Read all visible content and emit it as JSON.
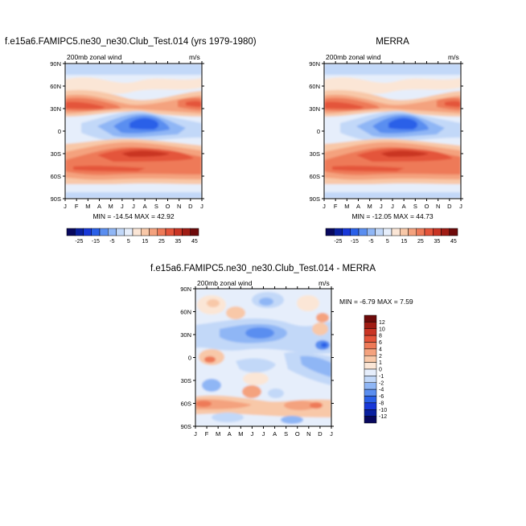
{
  "chart_data": [
    {
      "type": "heatmap",
      "title": "f.e15a6.FAMIPC5.ne30_ne30.Club_Test.014 (yrs 1979-1980)",
      "subtitle_left": "200mb zonal wind",
      "units": "m/s",
      "x_ticks": [
        "J",
        "F",
        "M",
        "A",
        "M",
        "J",
        "J",
        "A",
        "S",
        "O",
        "N",
        "D",
        "J"
      ],
      "y_ticks": [
        "90N",
        "60N",
        "30N",
        "0",
        "30S",
        "60S",
        "90S"
      ],
      "minmax_text": "MIN = -14.54 MAX =  42.92",
      "min": -14.54,
      "max": 42.92,
      "colorbar_labels": [
        "-25",
        "-15",
        "-5",
        "5",
        "15",
        "25",
        "35",
        "45"
      ]
    },
    {
      "type": "heatmap",
      "title": "MERRA",
      "subtitle_left": "200mb zonal wind",
      "units": "m/s",
      "x_ticks": [
        "J",
        "F",
        "M",
        "A",
        "M",
        "J",
        "J",
        "A",
        "S",
        "O",
        "N",
        "D",
        "J"
      ],
      "y_ticks": [
        "90N",
        "60N",
        "30N",
        "0",
        "30S",
        "60S",
        "90S"
      ],
      "minmax_text": "MIN = -12.05 MAX =  44.73",
      "min": -12.05,
      "max": 44.73,
      "colorbar_labels": [
        "-25",
        "-15",
        "-5",
        "5",
        "15",
        "25",
        "35",
        "45"
      ]
    },
    {
      "type": "heatmap",
      "title": "f.e15a6.FAMIPC5.ne30_ne30.Club_Test.014 - MERRA",
      "subtitle_left": "200mb zonal wind",
      "units": "m/s",
      "x_ticks": [
        "J",
        "F",
        "M",
        "A",
        "M",
        "J",
        "J",
        "A",
        "S",
        "O",
        "N",
        "D",
        "J"
      ],
      "y_ticks": [
        "90N",
        "60N",
        "30N",
        "0",
        "30S",
        "60S",
        "90S"
      ],
      "minmax_text": "MIN =  -6.79 MAX =   7.59",
      "min": -6.79,
      "max": 7.59,
      "colorbar_labels": [
        "12",
        "10",
        "8",
        "6",
        "4",
        "2",
        "1",
        "0",
        "-1",
        "-2",
        "-4",
        "-6",
        "-8",
        "-10",
        "-12"
      ]
    }
  ],
  "colors": {
    "diverging": [
      "#08085e",
      "#0a20a0",
      "#1838d8",
      "#2a60e8",
      "#5a8ef0",
      "#8fb6f5",
      "#c2d8f8",
      "#e6eefb",
      "#fbe6d6",
      "#f8c8a8",
      "#f4a27e",
      "#ee7a58",
      "#e4543a",
      "#c93424",
      "#a01c14",
      "#6e0a0a"
    ]
  }
}
